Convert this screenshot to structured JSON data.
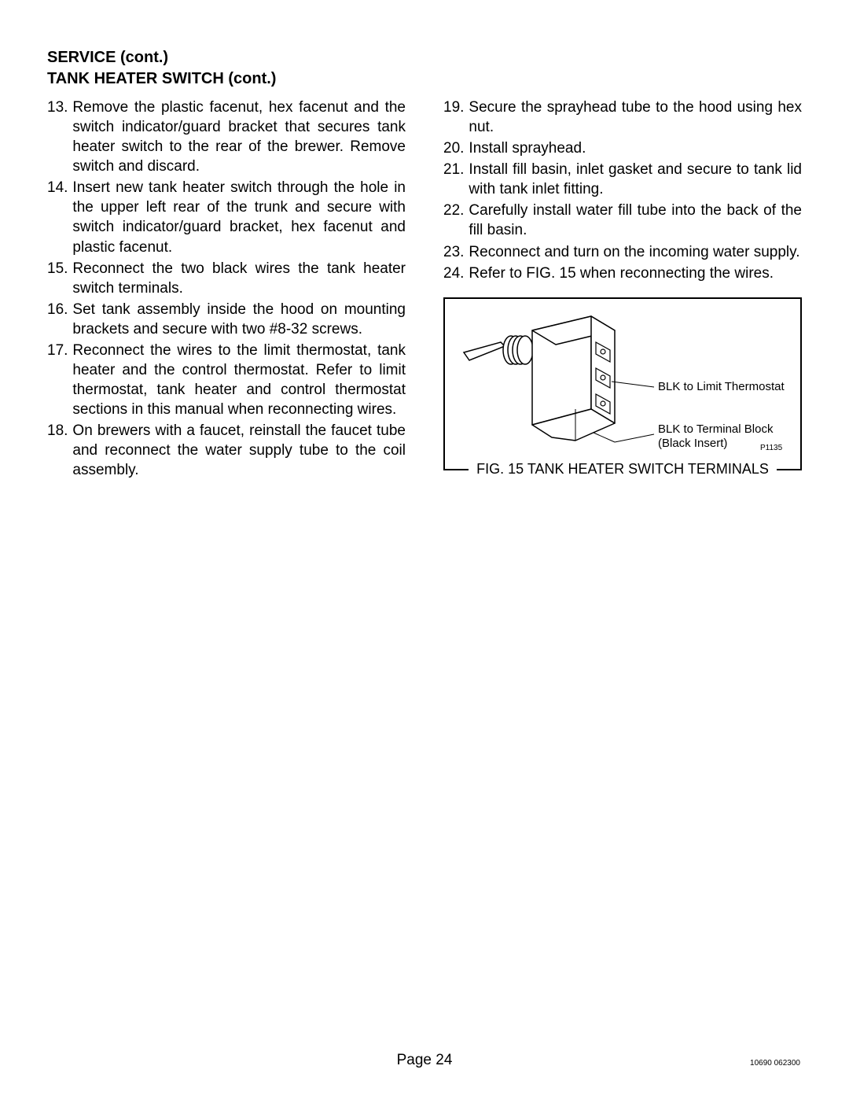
{
  "headings": {
    "h1": "SERVICE (cont.)",
    "h2": "TANK HEATER SWITCH (cont.)"
  },
  "left_start": 13,
  "left_steps": [
    "Remove the plastic facenut, hex facenut and the switch indicator/guard bracket that secures tank heater switch to the rear of the brewer. Remove switch and discard.",
    "Insert new tank heater switch through the hole in the upper left rear of the trunk and secure with switch indicator/guard bracket, hex facenut and plastic facenut.",
    "Reconnect the two black wires the tank heater switch terminals.",
    "Set tank assembly inside the hood on  mounting brackets and secure with two #8-32 screws.",
    "Reconnect the wires to the limit thermostat, tank heater and the control thermostat. Refer to limit thermostat, tank heater and control thermostat sections in this manual when reconnecting wires.",
    "On brewers with a faucet, reinstall the faucet tube and reconnect the water supply tube to the coil assembly."
  ],
  "right_start": 19,
  "right_steps": [
    "Secure the sprayhead tube to the hood using  hex nut.",
    "Install sprayhead.",
    "Install fill basin, inlet gasket and secure to tank lid with tank inlet fitting.",
    "Carefully install water fill tube into the back of the fill basin.",
    "Reconnect and turn on the incoming water supply.",
    "Refer to FIG. 15 when reconnecting the wires."
  ],
  "figure": {
    "caption": "FIG. 15 TANK HEATER SWITCH TERMINALS",
    "label1": "BLK to Limit Thermostat",
    "label2a": "BLK to Terminal Block",
    "label2b": "(Black Insert)",
    "part_number": "P1135",
    "stroke": "#000000",
    "fill": "#ffffff"
  },
  "footer": {
    "page": "Page 24",
    "docnum": "10690 062300"
  }
}
